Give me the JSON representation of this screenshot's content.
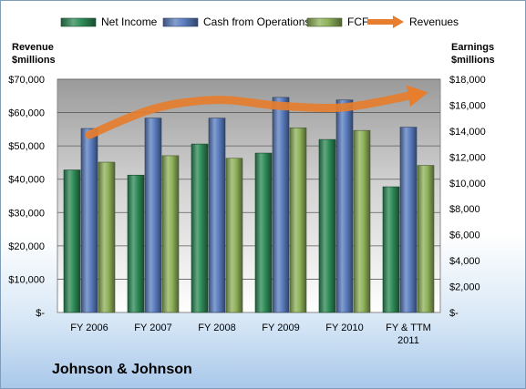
{
  "chart_data": {
    "type": "bar",
    "title": "Johnson & Johnson",
    "categories": [
      "FY 2006",
      "FY 2007",
      "FY 2008",
      "FY 2009",
      "FY 2010",
      "FY & TTM 2011"
    ],
    "series": [
      {
        "name": "Net Income",
        "axis": "right",
        "color": "#2e8b57",
        "values": [
          11000,
          10600,
          13000,
          12300,
          13350,
          9700
        ]
      },
      {
        "name": "Cash from Operations",
        "axis": "right",
        "color": "#5b7ec0",
        "values": [
          14200,
          15000,
          15000,
          16600,
          16400,
          14300
        ]
      },
      {
        "name": "FCF",
        "axis": "right",
        "color": "#8fb25a",
        "values": [
          11600,
          12100,
          11900,
          14250,
          14050,
          11350
        ]
      },
      {
        "name": "Revenues",
        "axis": "left",
        "type": "line-arrow",
        "color": "#e67e2e",
        "values": [
          53300,
          61100,
          63800,
          62000,
          61600,
          65000
        ]
      }
    ],
    "left_axis": {
      "title_line1": "Revenue",
      "title_line2": "$millions",
      "ylim": [
        0,
        70000
      ],
      "ticks": [
        "$-",
        "$10,000",
        "$20,000",
        "$30,000",
        "$40,000",
        "$50,000",
        "$60,000",
        "$70,000"
      ]
    },
    "right_axis": {
      "title_line1": "Earnings",
      "title_line2": "$millions",
      "ylim": [
        0,
        18000
      ],
      "ticks": [
        "$-",
        "$2,000",
        "$4,000",
        "$6,000",
        "$8,000",
        "$10,000",
        "$12,000",
        "$14,000",
        "$16,000",
        "$18,000"
      ]
    },
    "grid": true,
    "legend_position": "top"
  }
}
